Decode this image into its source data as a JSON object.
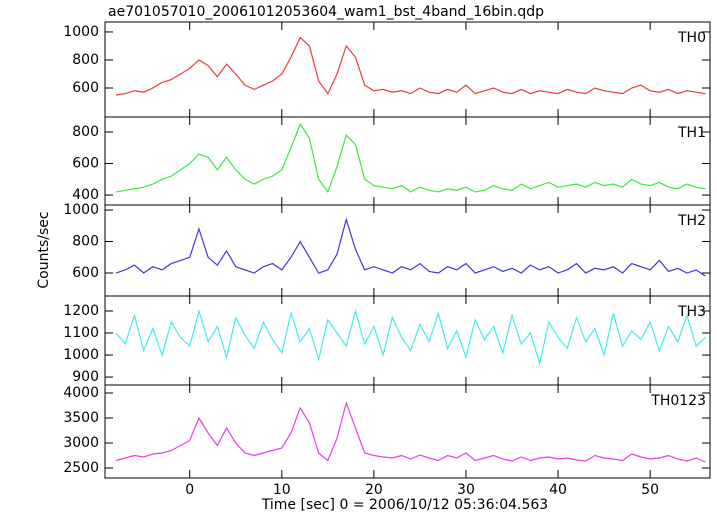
{
  "title": "ae701057010_20061012053604_wam1_bst_4band_16bin.qdp",
  "y_label": "Counts/sec",
  "x_label": "Time [sec] 0 = 2006/10/12 05:36:04.563",
  "chart_data": [
    {
      "type": "line",
      "label": "TH0",
      "color": "#f03a3a",
      "x": [
        -8,
        -7,
        -6,
        -5,
        -4,
        -3,
        -2,
        -1,
        0,
        1,
        2,
        3,
        4,
        5,
        6,
        7,
        8,
        9,
        10,
        11,
        12,
        13,
        14,
        15,
        16,
        17,
        18,
        19,
        20,
        21,
        22,
        23,
        24,
        25,
        26,
        27,
        28,
        29,
        30,
        31,
        32,
        33,
        34,
        35,
        36,
        37,
        38,
        39,
        40,
        41,
        42,
        43,
        44,
        45,
        46,
        47,
        48,
        49,
        50,
        51,
        52,
        53,
        54,
        55,
        56
      ],
      "values": [
        550,
        560,
        580,
        570,
        600,
        640,
        660,
        700,
        740,
        800,
        760,
        680,
        770,
        700,
        620,
        590,
        620,
        650,
        700,
        820,
        960,
        900,
        650,
        560,
        700,
        900,
        820,
        620,
        580,
        590,
        570,
        580,
        560,
        600,
        570,
        560,
        590,
        570,
        620,
        560,
        580,
        600,
        570,
        560,
        590,
        560,
        580,
        570,
        560,
        590,
        570,
        560,
        600,
        580,
        570,
        560,
        600,
        620,
        580,
        570,
        590,
        560,
        580,
        570,
        560
      ],
      "xlim": [
        -9.2,
        56.5
      ],
      "xticks": [
        0,
        10,
        20,
        30,
        40,
        50
      ],
      "ylim": [
        393,
        1071
      ],
      "yticks": [
        600,
        800,
        1000
      ]
    },
    {
      "type": "line",
      "label": "TH1",
      "color": "#3ee83e",
      "x": [
        -8,
        -7,
        -6,
        -5,
        -4,
        -3,
        -2,
        -1,
        0,
        1,
        2,
        3,
        4,
        5,
        6,
        7,
        8,
        9,
        10,
        11,
        12,
        13,
        14,
        15,
        16,
        17,
        18,
        19,
        20,
        21,
        22,
        23,
        24,
        25,
        26,
        27,
        28,
        29,
        30,
        31,
        32,
        33,
        34,
        35,
        36,
        37,
        38,
        39,
        40,
        41,
        42,
        43,
        44,
        45,
        46,
        47,
        48,
        49,
        50,
        51,
        52,
        53,
        54,
        55,
        56
      ],
      "values": [
        420,
        430,
        440,
        450,
        470,
        500,
        520,
        560,
        600,
        660,
        640,
        560,
        640,
        560,
        500,
        470,
        500,
        520,
        560,
        700,
        850,
        760,
        500,
        420,
        580,
        780,
        720,
        500,
        460,
        450,
        440,
        460,
        420,
        450,
        430,
        420,
        440,
        430,
        450,
        420,
        430,
        460,
        440,
        430,
        470,
        440,
        460,
        480,
        450,
        460,
        470,
        450,
        480,
        460,
        470,
        450,
        500,
        470,
        460,
        480,
        450,
        440,
        470,
        450,
        440
      ],
      "xlim": [
        -9.2,
        56.5
      ],
      "xticks": [
        0,
        10,
        20,
        30,
        40,
        50
      ],
      "ylim": [
        337,
        895
      ],
      "yticks": [
        400,
        600,
        800
      ]
    },
    {
      "type": "line",
      "label": "TH2",
      "color": "#3a3ae0",
      "x": [
        -8,
        -7,
        -6,
        -5,
        -4,
        -3,
        -2,
        -1,
        0,
        1,
        2,
        3,
        4,
        5,
        6,
        7,
        8,
        9,
        10,
        11,
        12,
        13,
        14,
        15,
        16,
        17,
        18,
        19,
        20,
        21,
        22,
        23,
        24,
        25,
        26,
        27,
        28,
        29,
        30,
        31,
        32,
        33,
        34,
        35,
        36,
        37,
        38,
        39,
        40,
        41,
        42,
        43,
        44,
        45,
        46,
        47,
        48,
        49,
        50,
        51,
        52,
        53,
        54,
        55,
        56
      ],
      "values": [
        600,
        620,
        650,
        600,
        640,
        620,
        660,
        680,
        700,
        880,
        700,
        650,
        740,
        640,
        620,
        600,
        640,
        660,
        620,
        700,
        800,
        700,
        600,
        620,
        720,
        940,
        750,
        620,
        640,
        620,
        600,
        640,
        620,
        660,
        610,
        600,
        640,
        620,
        660,
        600,
        620,
        640,
        610,
        630,
        600,
        650,
        620,
        640,
        600,
        620,
        660,
        600,
        630,
        620,
        640,
        600,
        660,
        640,
        620,
        680,
        610,
        630,
        600,
        620,
        580
      ],
      "xlim": [
        -9.2,
        56.5
      ],
      "xticks": [
        0,
        10,
        20,
        30,
        40,
        50
      ],
      "ylim": [
        454,
        1032
      ],
      "yticks": [
        600,
        800,
        1000
      ]
    },
    {
      "type": "line",
      "label": "TH3",
      "color": "#44ecec",
      "x": [
        -8,
        -7,
        -6,
        -5,
        -4,
        -3,
        -2,
        -1,
        0,
        1,
        2,
        3,
        4,
        5,
        6,
        7,
        8,
        9,
        10,
        11,
        12,
        13,
        14,
        15,
        16,
        17,
        18,
        19,
        20,
        21,
        22,
        23,
        24,
        25,
        26,
        27,
        28,
        29,
        30,
        31,
        32,
        33,
        34,
        35,
        36,
        37,
        38,
        39,
        40,
        41,
        42,
        43,
        44,
        45,
        46,
        47,
        48,
        49,
        50,
        51,
        52,
        53,
        54,
        55,
        56
      ],
      "values": [
        1100,
        1050,
        1180,
        1020,
        1120,
        1000,
        1150,
        1080,
        1040,
        1200,
        1060,
        1130,
        990,
        1170,
        1090,
        1030,
        1150,
        1070,
        1010,
        1190,
        1060,
        1120,
        980,
        1160,
        1100,
        1040,
        1200,
        1050,
        1130,
        1000,
        1170,
        1080,
        1020,
        1140,
        1060,
        1190,
        1030,
        1110,
        990,
        1160,
        1070,
        1130,
        1010,
        1180,
        1050,
        1100,
        960,
        1150,
        1080,
        1030,
        1170,
        1060,
        1120,
        1000,
        1190,
        1040,
        1110,
        1070,
        1150,
        1020,
        1130,
        1060,
        1180,
        1040,
        1080
      ],
      "xlim": [
        -9.2,
        56.5
      ],
      "xticks": [
        0,
        10,
        20,
        30,
        40,
        50
      ],
      "ylim": [
        864,
        1268
      ],
      "yticks": [
        900,
        1000,
        1100,
        1200
      ]
    },
    {
      "type": "line",
      "label": "TH0123",
      "color": "#e83ee8",
      "x": [
        -8,
        -7,
        -6,
        -5,
        -4,
        -3,
        -2,
        -1,
        0,
        1,
        2,
        3,
        4,
        5,
        6,
        7,
        8,
        9,
        10,
        11,
        12,
        13,
        14,
        15,
        16,
        17,
        18,
        19,
        20,
        21,
        22,
        23,
        24,
        25,
        26,
        27,
        28,
        29,
        30,
        31,
        32,
        33,
        34,
        35,
        36,
        37,
        38,
        39,
        40,
        41,
        42,
        43,
        44,
        45,
        46,
        47,
        48,
        49,
        50,
        51,
        52,
        53,
        54,
        55,
        56
      ],
      "values": [
        2650,
        2700,
        2750,
        2720,
        2780,
        2800,
        2850,
        2950,
        3050,
        3500,
        3200,
        2950,
        3300,
        3000,
        2800,
        2750,
        2800,
        2850,
        2900,
        3200,
        3700,
        3400,
        2800,
        2650,
        3100,
        3800,
        3300,
        2800,
        2750,
        2720,
        2700,
        2750,
        2680,
        2760,
        2700,
        2650,
        2750,
        2700,
        2800,
        2650,
        2700,
        2750,
        2680,
        2640,
        2720,
        2650,
        2700,
        2720,
        2680,
        2700,
        2660,
        2640,
        2750,
        2700,
        2680,
        2650,
        2780,
        2720,
        2680,
        2700,
        2750,
        2680,
        2640,
        2700,
        2620
      ],
      "xlim": [
        -9.2,
        56.5
      ],
      "xticks": [
        0,
        10,
        20,
        30,
        40,
        50
      ],
      "ylim": [
        2300,
        4160
      ],
      "yticks": [
        2500,
        3000,
        3500,
        4000
      ]
    }
  ]
}
